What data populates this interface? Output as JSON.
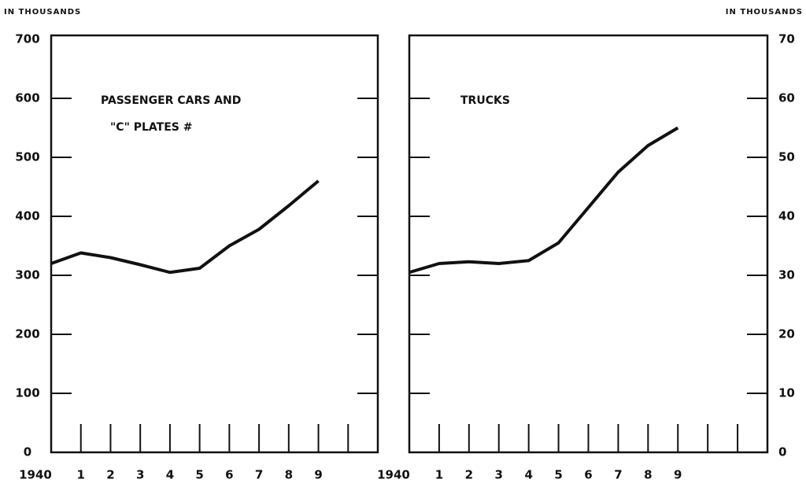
{
  "chart_data": [
    {
      "type": "line",
      "y_label": "IN THOUSANDS",
      "annotations": [
        "PASSENGER CARS AND",
        "\"C\" PLATES #"
      ],
      "x": [
        1940,
        1941,
        1942,
        1943,
        1944,
        1945,
        1946,
        1947,
        1948,
        1949
      ],
      "values": [
        320,
        338,
        330,
        318,
        305,
        312,
        350,
        378,
        418,
        460
      ],
      "color": "#111111",
      "xlim": [
        1940,
        1951
      ],
      "xticks": [
        {
          "value": 1940,
          "label": "1940"
        },
        {
          "value": 1941,
          "label": "1"
        },
        {
          "value": 1942,
          "label": "2"
        },
        {
          "value": 1943,
          "label": "3"
        },
        {
          "value": 1944,
          "label": "4"
        },
        {
          "value": 1945,
          "label": "5"
        },
        {
          "value": 1946,
          "label": "6"
        },
        {
          "value": 1947,
          "label": "7"
        },
        {
          "value": 1948,
          "label": "8"
        },
        {
          "value": 1949,
          "label": "9"
        }
      ],
      "ylim": [
        0,
        700
      ],
      "yticks": [
        0,
        100,
        200,
        300,
        400,
        500,
        600,
        700
      ]
    },
    {
      "type": "line",
      "y_label": "IN THOUSANDS",
      "annotations": [
        "TRUCKS"
      ],
      "x": [
        1940,
        1941,
        1942,
        1943,
        1944,
        1945,
        1946,
        1947,
        1948,
        1949
      ],
      "values": [
        30.5,
        32,
        32.3,
        32,
        32.5,
        35.5,
        41.5,
        47.5,
        52,
        55
      ],
      "color": "#111111",
      "xlim": [
        1940,
        1952
      ],
      "xticks": [
        {
          "value": 1940,
          "label": "1940"
        },
        {
          "value": 1941,
          "label": "1"
        },
        {
          "value": 1942,
          "label": "2"
        },
        {
          "value": 1943,
          "label": "3"
        },
        {
          "value": 1944,
          "label": "4"
        },
        {
          "value": 1945,
          "label": "5"
        },
        {
          "value": 1946,
          "label": "6"
        },
        {
          "value": 1947,
          "label": "7"
        },
        {
          "value": 1948,
          "label": "8"
        },
        {
          "value": 1949,
          "label": "9"
        }
      ],
      "ylim": [
        0,
        70
      ],
      "yticks": [
        0,
        10,
        20,
        30,
        40,
        50,
        60,
        70
      ]
    }
  ]
}
